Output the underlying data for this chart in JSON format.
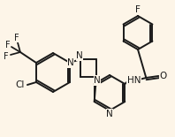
{
  "background_color": "#fdf5e8",
  "line_color": "#1a1a1a",
  "line_width": 1.4,
  "figsize": [
    1.98,
    1.55
  ],
  "dpi": 100,
  "xlim": [
    0,
    198
  ],
  "ylim": [
    0,
    155
  ]
}
